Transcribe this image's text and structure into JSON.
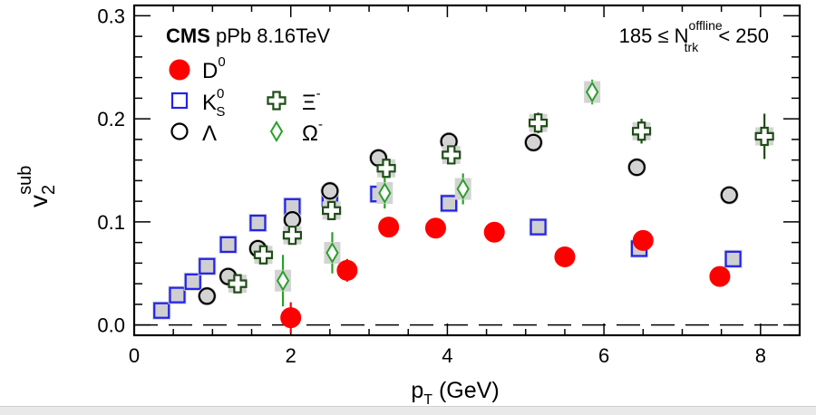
{
  "chart_data": {
    "type": "scatter",
    "experiment": "CMS",
    "system": "pPb 8.16TeV",
    "multiplicity": {
      "prefix": "185 ≤ N",
      "sup": "offline",
      "sub": "trk",
      "suffix": " < 250"
    },
    "xlabel": {
      "main": "p",
      "sub": "T",
      "unit": " (GeV)"
    },
    "ylabel": {
      "main": "v",
      "sub": "2",
      "sup": "sub"
    },
    "xlim": [
      0,
      8.5
    ],
    "ylim": [
      -0.01,
      0.31
    ],
    "xticks": [
      "0",
      "2",
      "4",
      "6",
      "8"
    ],
    "yticks": [
      "0.0",
      "0.1",
      "0.2",
      "0.3"
    ],
    "series": [
      {
        "name": "D0",
        "label": "D",
        "label_sup": "0",
        "marker": "filled-circle",
        "color": "#ff0000",
        "x": [
          2.0,
          2.72,
          3.25,
          3.85,
          4.6,
          5.5,
          6.5,
          7.48
        ],
        "y": [
          0.007,
          0.053,
          0.095,
          0.094,
          0.09,
          0.066,
          0.082,
          0.047
        ],
        "err": [
          0.015,
          0.011,
          0.005,
          0.005,
          0.005,
          0.005,
          0.005,
          0.005
        ]
      },
      {
        "name": "K0S",
        "label": "K",
        "label_sup": "0",
        "label_sub": "S",
        "marker": "open-square",
        "color": "#2222ee",
        "x": [
          0.35,
          0.55,
          0.75,
          0.93,
          1.2,
          1.58,
          2.02,
          2.5,
          3.12,
          4.02,
          5.16,
          6.45,
          7.65
        ],
        "y": [
          0.014,
          0.029,
          0.042,
          0.057,
          0.078,
          0.099,
          0.115,
          0.123,
          0.127,
          0.118,
          0.095,
          0.074,
          0.064
        ],
        "err": [
          0,
          0,
          0,
          0,
          0,
          0,
          0,
          0,
          0,
          0,
          0,
          0,
          0
        ]
      },
      {
        "name": "Lambda",
        "label": "Λ",
        "marker": "open-circle",
        "color": "#000000",
        "x": [
          0.93,
          1.2,
          1.58,
          2.02,
          2.5,
          3.12,
          4.02,
          5.1,
          6.42,
          7.6
        ],
        "y": [
          0.028,
          0.047,
          0.074,
          0.102,
          0.13,
          0.162,
          0.178,
          0.177,
          0.153,
          0.126
        ],
        "err": [
          0,
          0,
          0,
          0,
          0,
          0,
          0,
          0,
          0,
          0
        ]
      },
      {
        "name": "Xi-",
        "label": "Ξ",
        "label_sup": "-",
        "marker": "open-cross",
        "color": "#1f4d17",
        "x": [
          1.32,
          1.65,
          2.02,
          2.52,
          3.22,
          4.05,
          5.16,
          6.48,
          8.05
        ],
        "y": [
          0.04,
          0.068,
          0.087,
          0.111,
          0.152,
          0.165,
          0.196,
          0.188,
          0.183
        ],
        "err": [
          0.005,
          0.005,
          0.008,
          0.008,
          0.008,
          0.009,
          0.01,
          0.012,
          0.022
        ]
      },
      {
        "name": "Omega-",
        "label": "Ω",
        "label_sup": "-",
        "marker": "open-diamond",
        "color": "#2aa02a",
        "x": [
          1.9,
          2.53,
          3.2,
          4.2,
          5.85
        ],
        "y": [
          0.043,
          0.07,
          0.128,
          0.132,
          0.226
        ],
        "err": [
          0.025,
          0.02,
          0.015,
          0.015,
          0.012
        ]
      }
    ]
  }
}
